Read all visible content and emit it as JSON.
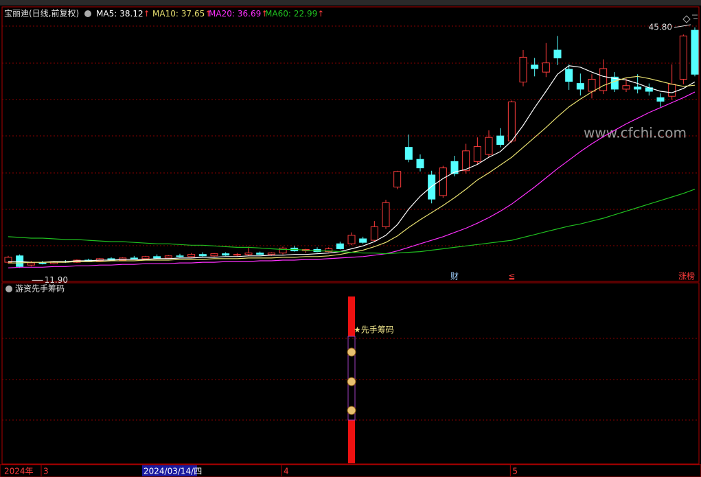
{
  "chart_data": {
    "type": "candlestick",
    "title": "宝丽迪(日线,前复权)",
    "legend_separator": ":",
    "trend_arrow": "↑",
    "up_color": "#ff3c3c",
    "down_color": "#54ffff",
    "ylim": [
      10,
      48.7
    ],
    "open": [
      12.7,
      13.6,
      12.3,
      12.6,
      12.5,
      12.8,
      12.7,
      13.0,
      12.9,
      13.2,
      13.0,
      13.3,
      13.2,
      13.5,
      13.3,
      13.6,
      13.5,
      13.8,
      13.6,
      13.9,
      13.7,
      13.8,
      14.0,
      13.8,
      14.0,
      14.7,
      14.3,
      14.5,
      14.2,
      15.3,
      15.3,
      16.0,
      15.8,
      17.7,
      23.3,
      28.9,
      27.2,
      25.0,
      22.1,
      26.9,
      25.6,
      26.9,
      27.9,
      30.5,
      29.8,
      38.1,
      40.5,
      39.5,
      42.6,
      39.9,
      37.9,
      36.8,
      36.9,
      38.8,
      37.1,
      37.4,
      37.3,
      35.9,
      36.1,
      38.5,
      45.4
    ],
    "high": [
      13.6,
      13.8,
      12.9,
      12.9,
      12.9,
      13.0,
      13.1,
      13.2,
      13.3,
      13.4,
      13.4,
      13.6,
      13.6,
      13.8,
      13.7,
      13.9,
      14.0,
      14.1,
      14.0,
      14.1,
      14.0,
      14.9,
      14.2,
      14.1,
      14.9,
      15.0,
      14.6,
      14.8,
      14.8,
      15.6,
      16.9,
      16.3,
      18.5,
      21.5,
      25.6,
      30.7,
      27.9,
      25.6,
      26.3,
      27.7,
      29.4,
      30.3,
      31.3,
      31.6,
      35.5,
      42.6,
      41.5,
      43.6,
      44.6,
      40.6,
      39.3,
      39.2,
      41.3,
      39.5,
      38.6,
      39.2,
      37.9,
      36.5,
      40.6,
      44.8,
      45.8
    ],
    "low": [
      12.5,
      11.9,
      12.1,
      12.4,
      12.4,
      12.6,
      12.6,
      12.8,
      12.8,
      12.9,
      12.9,
      13.1,
      13.1,
      13.2,
      13.2,
      13.4,
      13.4,
      13.5,
      13.5,
      13.6,
      13.5,
      13.6,
      13.7,
      13.6,
      13.8,
      14.2,
      14.0,
      14.1,
      14.1,
      14.5,
      15.1,
      15.3,
      15.6,
      17.4,
      23.0,
      26.8,
      25.5,
      21.0,
      21.8,
      24.8,
      25.2,
      26.5,
      27.5,
      28.9,
      29.5,
      37.5,
      38.9,
      38.8,
      40.5,
      37.0,
      36.2,
      35.8,
      36.4,
      36.7,
      36.7,
      36.5,
      36.2,
      34.6,
      35.6,
      37.8,
      38.9
    ],
    "close": [
      13.4,
      12.1,
      12.6,
      12.5,
      12.8,
      12.7,
      13.0,
      12.9,
      13.2,
      13.0,
      13.3,
      13.2,
      13.5,
      13.3,
      13.6,
      13.5,
      13.8,
      13.6,
      13.9,
      13.7,
      13.8,
      14.0,
      13.8,
      14.0,
      14.7,
      14.3,
      14.5,
      14.2,
      14.6,
      14.6,
      16.5,
      15.5,
      17.7,
      21.1,
      25.5,
      27.2,
      26.0,
      21.6,
      26.0,
      25.2,
      28.4,
      29.0,
      30.3,
      29.3,
      35.3,
      41.6,
      40.0,
      40.8,
      41.5,
      38.2,
      37.1,
      38.5,
      40.0,
      37.1,
      37.6,
      37.1,
      36.8,
      35.4,
      37.8,
      44.6,
      39.2
    ],
    "series": [
      {
        "name": "MA5",
        "color": "#ffffff",
        "values": [
          12.8,
          12.8,
          12.7,
          12.7,
          12.8,
          12.8,
          12.9,
          12.9,
          13.0,
          13.0,
          13.1,
          13.1,
          13.1,
          13.2,
          13.2,
          13.3,
          13.3,
          13.4,
          13.4,
          13.5,
          13.5,
          13.6,
          13.6,
          13.7,
          13.7,
          13.8,
          13.8,
          13.9,
          14.0,
          14.2,
          14.6,
          15.0,
          15.6,
          16.5,
          18.0,
          20.2,
          22.0,
          23.4,
          24.5,
          25.4,
          25.8,
          26.5,
          27.5,
          28.3,
          29.8,
          32.0,
          34.5,
          36.8,
          39.2,
          40.4,
          40.2,
          39.5,
          38.9,
          38.6,
          38.4,
          37.9,
          37.3,
          36.8,
          36.6,
          37.2,
          38.12
        ]
      },
      {
        "name": "MA10",
        "color": "#e8e070",
        "values": [
          12.6,
          12.6,
          12.7,
          12.7,
          12.7,
          12.7,
          12.8,
          12.8,
          12.8,
          12.9,
          12.9,
          12.9,
          13.0,
          13.0,
          13.0,
          13.1,
          13.1,
          13.1,
          13.2,
          13.2,
          13.2,
          13.3,
          13.3,
          13.3,
          13.4,
          13.4,
          13.5,
          13.5,
          13.6,
          13.8,
          14.1,
          14.4,
          14.9,
          15.5,
          16.4,
          17.6,
          18.7,
          19.7,
          20.7,
          21.8,
          23.0,
          24.3,
          25.3,
          26.4,
          27.5,
          28.9,
          30.3,
          31.7,
          33.2,
          34.6,
          35.7,
          36.7,
          37.6,
          38.2,
          38.7,
          38.9,
          38.6,
          38.2,
          37.8,
          37.5,
          37.65
        ]
      },
      {
        "name": "MA20",
        "color": "#ff30ff",
        "values": [
          11.9,
          12.0,
          12.0,
          12.0,
          12.1,
          12.1,
          12.2,
          12.2,
          12.3,
          12.3,
          12.4,
          12.4,
          12.5,
          12.5,
          12.5,
          12.6,
          12.6,
          12.7,
          12.7,
          12.8,
          12.8,
          12.8,
          12.9,
          12.9,
          13.0,
          13.0,
          13.1,
          13.1,
          13.2,
          13.3,
          13.4,
          13.5,
          13.7,
          13.9,
          14.3,
          14.8,
          15.3,
          15.8,
          16.3,
          16.9,
          17.5,
          18.2,
          19.0,
          19.9,
          20.9,
          22.1,
          23.3,
          24.6,
          25.9,
          27.1,
          28.3,
          29.4,
          30.4,
          31.3,
          32.2,
          33.0,
          33.8,
          34.5,
          35.2,
          35.9,
          36.69
        ]
      },
      {
        "name": "MA60",
        "color": "#20c020",
        "values": [
          16.3,
          16.2,
          16.1,
          16.1,
          16.0,
          15.9,
          15.9,
          15.8,
          15.7,
          15.6,
          15.6,
          15.5,
          15.4,
          15.3,
          15.3,
          15.2,
          15.1,
          15.1,
          15.0,
          14.9,
          14.8,
          14.8,
          14.7,
          14.6,
          14.5,
          14.5,
          14.4,
          14.3,
          14.3,
          14.2,
          14.1,
          14.0,
          14.0,
          13.9,
          14.0,
          14.1,
          14.2,
          14.4,
          14.6,
          14.8,
          15.0,
          15.2,
          15.4,
          15.6,
          15.8,
          16.2,
          16.6,
          17.0,
          17.4,
          17.8,
          18.1,
          18.5,
          18.9,
          19.4,
          19.9,
          20.4,
          20.9,
          21.4,
          21.9,
          22.4,
          22.99
        ]
      }
    ],
    "max_marker": {
      "value": 45.8,
      "label": "45.80"
    },
    "min_marker": {
      "value": 11.9,
      "label": "11.90"
    },
    "annotations": [
      {
        "text": "财",
        "candle": 39
      },
      {
        "text": "≦",
        "candle": 44
      },
      {
        "text": "涨榜",
        "candle": 60
      }
    ],
    "watermark": "www.cfchi.com",
    "indicator": {
      "title": "游资先手筹码",
      "signal_label": "★先手筹码",
      "signal_candle": 30
    },
    "x_axis": {
      "year": "2024年",
      "cursor_date": "2024/03/14/四",
      "ticks": [
        {
          "value": 3,
          "label": "3"
        },
        {
          "value": 24,
          "label": "4"
        },
        {
          "value": 44,
          "label": "5"
        }
      ]
    }
  }
}
